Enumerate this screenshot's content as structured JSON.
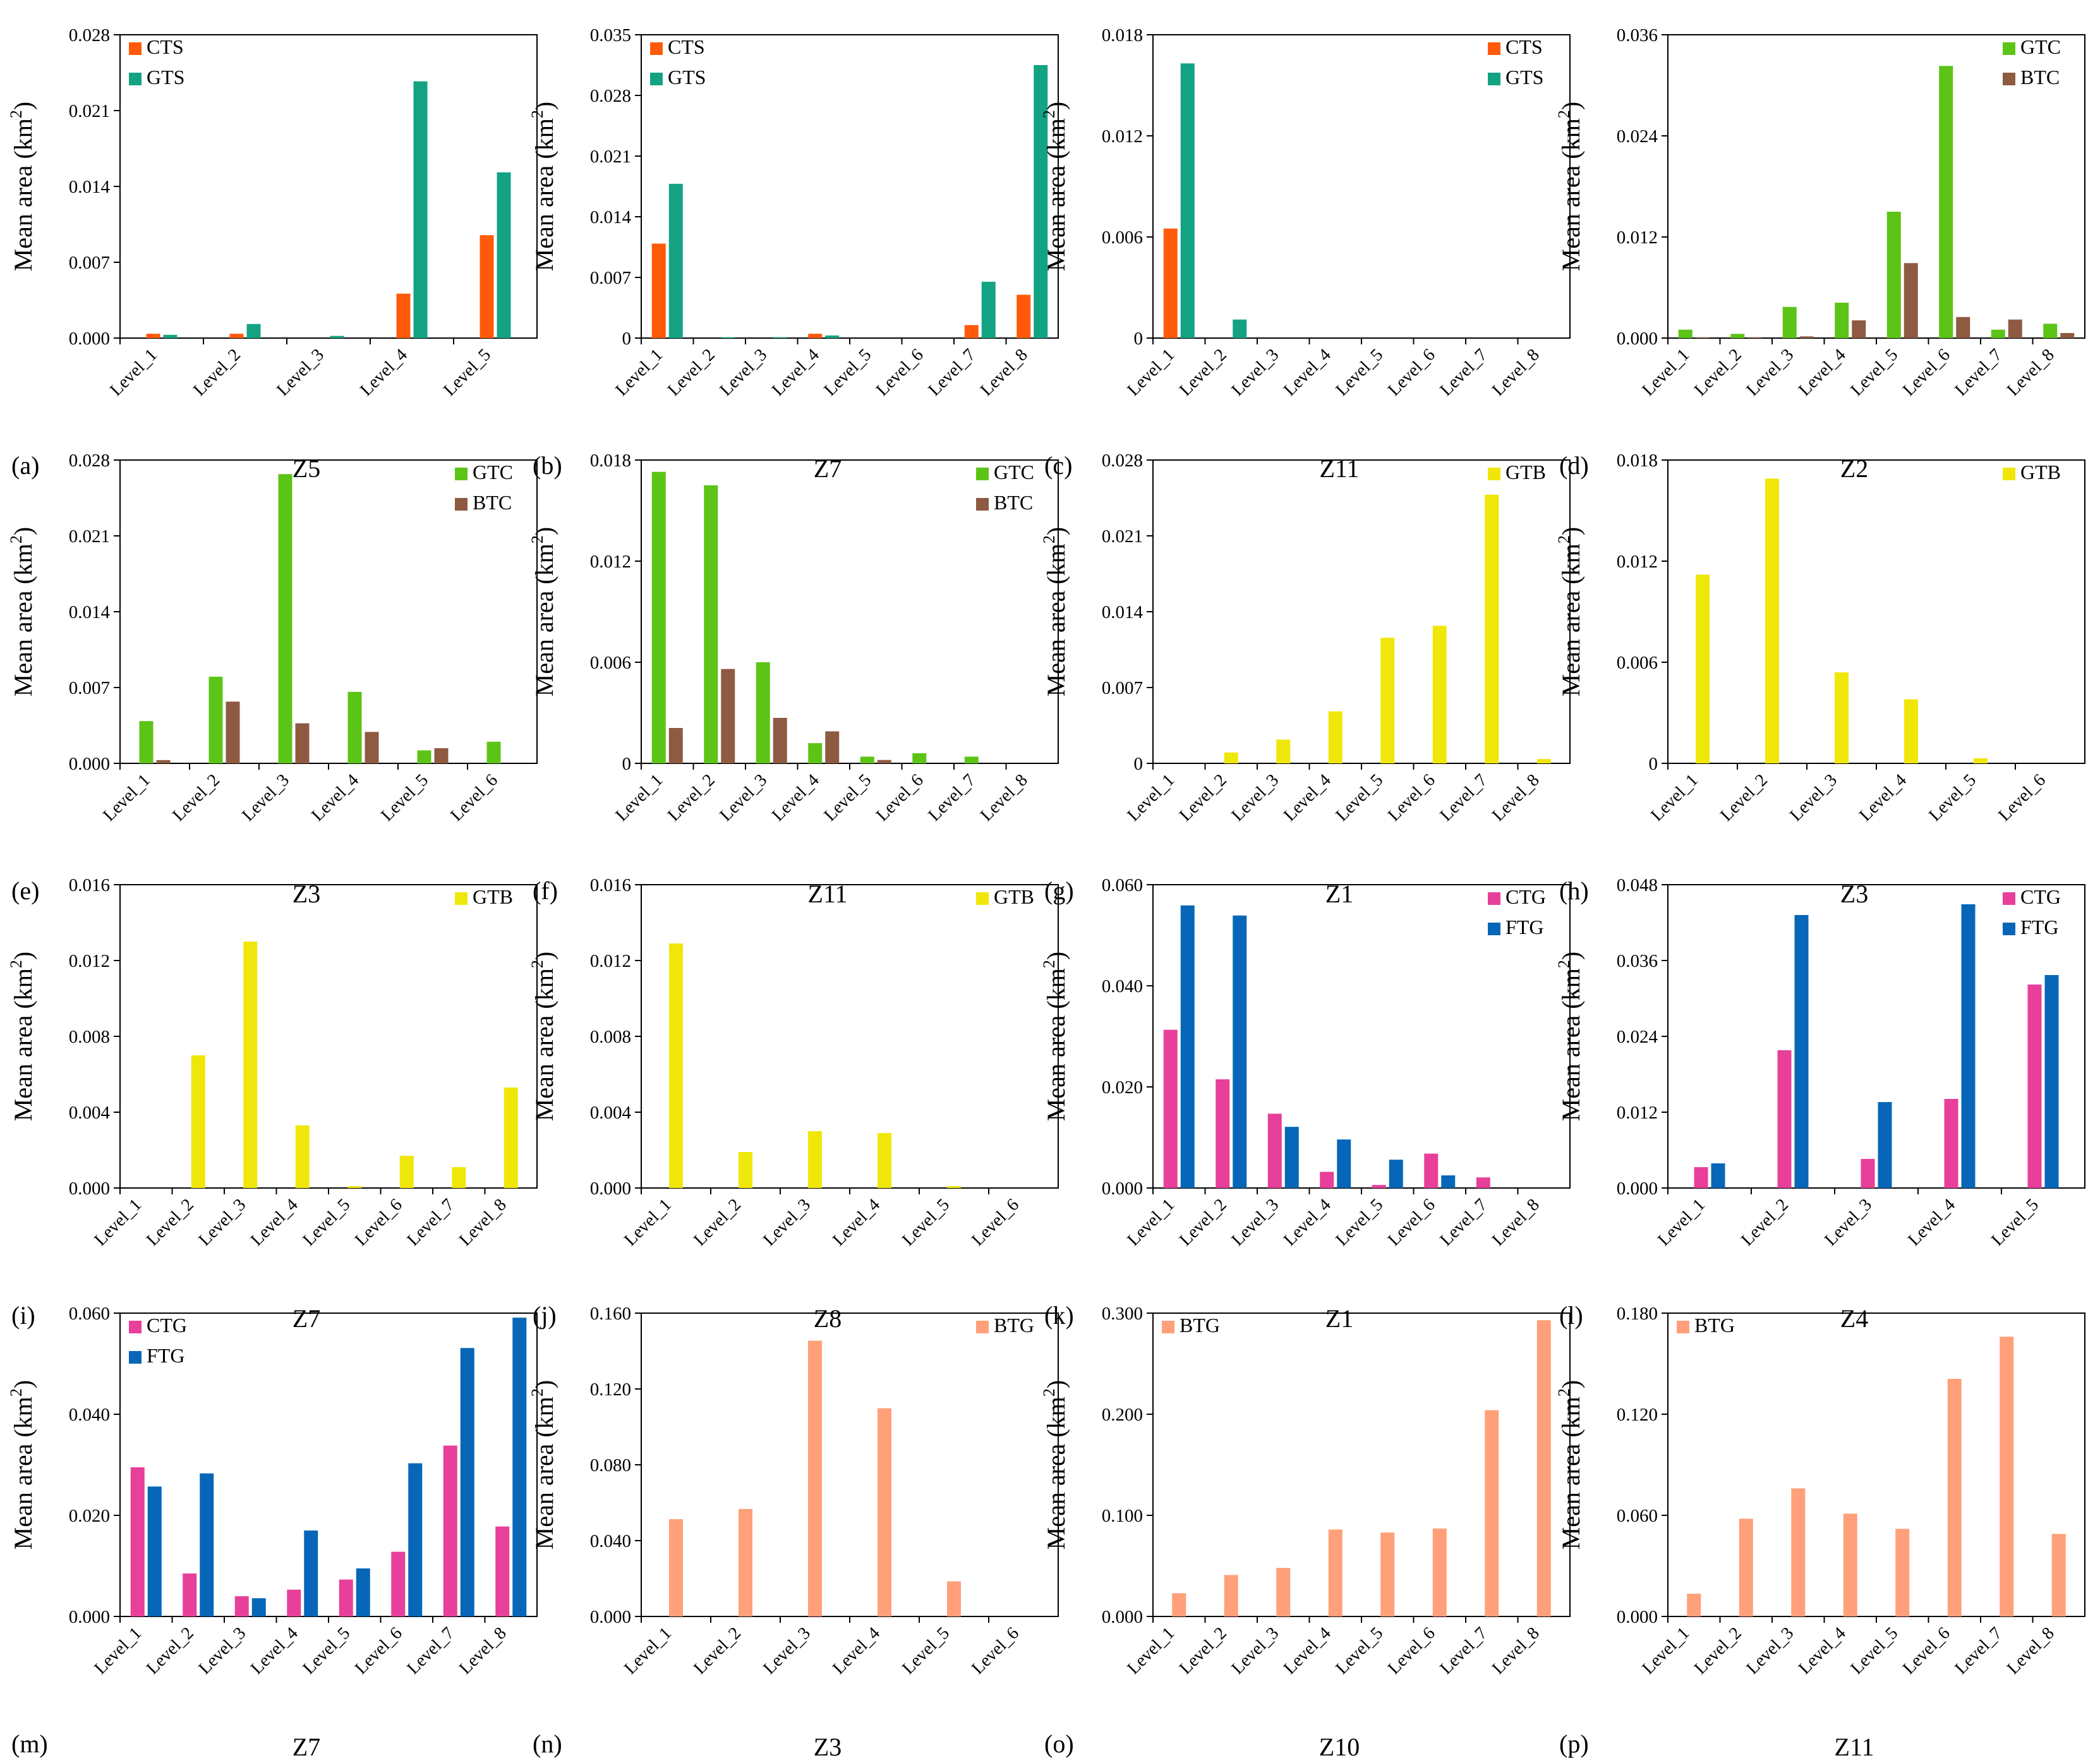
{
  "chart_data": [
    {
      "panel_label": "(a)",
      "zone": "Z5",
      "type": "bar",
      "ylabel": "Mean area (km²)",
      "ylim": [
        0,
        0.028
      ],
      "yticks": [
        "0.000",
        "0.007",
        "0.014",
        "0.021",
        "0.028"
      ],
      "categories": [
        "Level_1",
        "Level_2",
        "Level_3",
        "Level_4",
        "Level_5"
      ],
      "series": [
        {
          "name": "CTS",
          "color": "#FF5A0A",
          "values": [
            0.0004,
            0.0004,
            0.0,
            0.0041,
            0.0095
          ]
        },
        {
          "name": "GTS",
          "color": "#13A383",
          "values": [
            0.0003,
            0.0013,
            0.0002,
            0.0237,
            0.0153
          ]
        }
      ],
      "legend": "top-left"
    },
    {
      "panel_label": "(b)",
      "zone": "Z7",
      "type": "bar",
      "ylabel": "Mean area (km²)",
      "ylim": [
        0,
        0.035
      ],
      "yticks": [
        "0",
        "0.007",
        "0.014",
        "0.021",
        "0.028",
        "0.035"
      ],
      "categories": [
        "Level_1",
        "Level_2",
        "Level_3",
        "Level_4",
        "Level_5",
        "Level_6",
        "Level_7",
        "Level_8"
      ],
      "series": [
        {
          "name": "CTS",
          "color": "#FF5A0A",
          "values": [
            0.0109,
            0.0,
            0.0,
            0.0005,
            0.0,
            0.0,
            0.0015,
            0.005
          ]
        },
        {
          "name": "GTS",
          "color": "#13A383",
          "values": [
            0.0178,
            0.0001,
            0.0001,
            0.0003,
            0.0,
            0.0,
            0.0065,
            0.0315
          ]
        }
      ],
      "legend": "top-left"
    },
    {
      "panel_label": "(c)",
      "zone": "Z11",
      "type": "bar",
      "ylabel": "Mean area (km²)",
      "ylim": [
        0,
        0.018
      ],
      "yticks": [
        "0",
        "0.006",
        "0.012",
        "0.018"
      ],
      "categories": [
        "Level_1",
        "Level_2",
        "Level_3",
        "Level_4",
        "Level_5",
        "Level_6",
        "Level_7",
        "Level_8"
      ],
      "series": [
        {
          "name": "CTS",
          "color": "#FF5A0A",
          "values": [
            0.0065,
            0.0,
            0.0,
            0.0,
            0.0,
            0.0,
            0.0,
            0.0
          ]
        },
        {
          "name": "GTS",
          "color": "#13A383",
          "values": [
            0.0163,
            0.0011,
            0.0,
            0.0,
            0.0,
            0.0,
            0.0,
            0.0
          ]
        }
      ],
      "legend": "top-right"
    },
    {
      "panel_label": "(d)",
      "zone": "Z2",
      "type": "bar",
      "ylabel": "Mean area (km²)",
      "ylim": [
        0,
        0.036
      ],
      "yticks": [
        "0.000",
        "0.012",
        "0.024",
        "0.036"
      ],
      "categories": [
        "Level_1",
        "Level_2",
        "Level_3",
        "Level_4",
        "Level_5",
        "Level_6",
        "Level_7",
        "Level_8"
      ],
      "series": [
        {
          "name": "GTC",
          "color": "#5CC416",
          "values": [
            0.001,
            0.0005,
            0.0037,
            0.0042,
            0.015,
            0.0323,
            0.001,
            0.0017
          ]
        },
        {
          "name": "BTC",
          "color": "#8E5A42",
          "values": [
            0.0001,
            0.0001,
            0.0002,
            0.0021,
            0.0089,
            0.0025,
            0.0022,
            0.0006
          ]
        }
      ],
      "legend": "top-right"
    },
    {
      "panel_label": "(e)",
      "zone": "Z3",
      "type": "bar",
      "ylabel": "Mean area (km²)",
      "ylim": [
        0,
        0.028
      ],
      "yticks": [
        "0.000",
        "0.007",
        "0.014",
        "0.021",
        "0.028"
      ],
      "categories": [
        "Level_1",
        "Level_2",
        "Level_3",
        "Level_4",
        "Level_5",
        "Level_6"
      ],
      "series": [
        {
          "name": "GTC",
          "color": "#5CC416",
          "values": [
            0.0039,
            0.008,
            0.0267,
            0.0066,
            0.0012,
            0.002
          ]
        },
        {
          "name": "BTC",
          "color": "#8E5A42",
          "values": [
            0.0003,
            0.0057,
            0.0037,
            0.0029,
            0.0014,
            0.0
          ]
        }
      ],
      "legend": "top-right"
    },
    {
      "panel_label": "(f)",
      "zone": "Z11",
      "type": "bar",
      "ylabel": "Mean area (km²)",
      "ylim": [
        0,
        0.018
      ],
      "yticks": [
        "0",
        "0.006",
        "0.012",
        "0.018"
      ],
      "categories": [
        "Level_1",
        "Level_2",
        "Level_3",
        "Level_4",
        "Level_5",
        "Level_6",
        "Level_7",
        "Level_8"
      ],
      "series": [
        {
          "name": "GTC",
          "color": "#5CC416",
          "values": [
            0.0173,
            0.0165,
            0.006,
            0.0012,
            0.0004,
            0.0006,
            0.0004,
            0.0
          ]
        },
        {
          "name": "BTC",
          "color": "#8E5A42",
          "values": [
            0.0021,
            0.0056,
            0.0027,
            0.0019,
            0.0002,
            0.0,
            0.0,
            0.0
          ]
        }
      ],
      "legend": "top-right"
    },
    {
      "panel_label": "(g)",
      "zone": "Z1",
      "type": "bar",
      "ylabel": "Mean area (km²)",
      "ylim": [
        0,
        0.028
      ],
      "yticks": [
        "0",
        "0.007",
        "0.014",
        "0.021",
        "0.028"
      ],
      "categories": [
        "Level_1",
        "Level_2",
        "Level_3",
        "Level_4",
        "Level_5",
        "Level_6",
        "Level_7",
        "Level_8"
      ],
      "series": [
        {
          "name": "GTB",
          "color": "#EFE70A",
          "values": [
            0.0,
            0.001,
            0.0022,
            0.0048,
            0.0116,
            0.0127,
            0.0248,
            0.0004
          ]
        }
      ],
      "legend": "top-right"
    },
    {
      "panel_label": "(h)",
      "zone": "Z3",
      "type": "bar",
      "ylabel": "Mean area (km²)",
      "ylim": [
        0,
        0.018
      ],
      "yticks": [
        "0",
        "0.006",
        "0.012",
        "0.018"
      ],
      "categories": [
        "Level_1",
        "Level_2",
        "Level_3",
        "Level_4",
        "Level_5",
        "Level_6"
      ],
      "series": [
        {
          "name": "GTB",
          "color": "#EFE70A",
          "values": [
            0.0112,
            0.0169,
            0.0054,
            0.0038,
            0.0003,
            0.0
          ]
        }
      ],
      "legend": "top-right"
    },
    {
      "panel_label": "(i)",
      "zone": "Z7",
      "type": "bar",
      "ylabel": "Mean area (km²)",
      "ylim": [
        0,
        0.016
      ],
      "yticks": [
        "0.000",
        "0.004",
        "0.008",
        "0.012",
        "0.016"
      ],
      "categories": [
        "Level_1",
        "Level_2",
        "Level_3",
        "Level_4",
        "Level_5",
        "Level_6",
        "Level_7",
        "Level_8"
      ],
      "series": [
        {
          "name": "GTB",
          "color": "#EFE70A",
          "values": [
            0.0,
            0.007,
            0.013,
            0.0033,
            0.0001,
            0.0017,
            0.0011,
            0.0053
          ]
        }
      ],
      "legend": "top-right"
    },
    {
      "panel_label": "(j)",
      "zone": "Z8",
      "type": "bar",
      "ylabel": "Mean area (km²)",
      "ylim": [
        0,
        0.016
      ],
      "yticks": [
        "0.000",
        "0.004",
        "0.008",
        "0.012",
        "0.016"
      ],
      "categories": [
        "Level_1",
        "Level_2",
        "Level_3",
        "Level_4",
        "Level_5",
        "Level_6"
      ],
      "series": [
        {
          "name": "GTB",
          "color": "#EFE70A",
          "values": [
            0.0129,
            0.0019,
            0.003,
            0.0029,
            0.0001,
            0.0
          ]
        }
      ],
      "legend": "top-right"
    },
    {
      "panel_label": "(k)",
      "zone": "Z1",
      "type": "bar",
      "ylabel": "Mean area (km²)",
      "ylim": [
        0,
        0.06
      ],
      "yticks": [
        "0.000",
        "0.020",
        "0.040",
        "0.060"
      ],
      "categories": [
        "Level_1",
        "Level_2",
        "Level_3",
        "Level_4",
        "Level_5",
        "Level_6",
        "Level_7",
        "Level_8"
      ],
      "series": [
        {
          "name": "CTG",
          "color": "#E83F9A",
          "values": [
            0.0313,
            0.0215,
            0.0147,
            0.0032,
            0.0006,
            0.0068,
            0.0021,
            0.0
          ]
        },
        {
          "name": "FTG",
          "color": "#0766B8",
          "values": [
            0.0559,
            0.0539,
            0.0121,
            0.0096,
            0.0056,
            0.0025,
            0.0,
            0.0
          ]
        }
      ],
      "legend": "top-right"
    },
    {
      "panel_label": "(l)",
      "zone": "Z4",
      "type": "bar",
      "ylabel": "Mean area (km²)",
      "ylim": [
        0,
        0.048
      ],
      "yticks": [
        "0.000",
        "0.012",
        "0.024",
        "0.036",
        "0.048"
      ],
      "categories": [
        "Level_1",
        "Level_2",
        "Level_3",
        "Level_4",
        "Level_5"
      ],
      "series": [
        {
          "name": "CTG",
          "color": "#E83F9A",
          "values": [
            0.0033,
            0.0218,
            0.0046,
            0.0141,
            0.0322
          ]
        },
        {
          "name": "FTG",
          "color": "#0766B8",
          "values": [
            0.0039,
            0.0432,
            0.0136,
            0.0449,
            0.0337
          ]
        }
      ],
      "legend": "top-right"
    },
    {
      "panel_label": "(m)",
      "zone": "Z7",
      "type": "bar",
      "ylabel": "Mean area (km²)",
      "ylim": [
        0,
        0.06
      ],
      "yticks": [
        "0.000",
        "0.020",
        "0.040",
        "0.060"
      ],
      "categories": [
        "Level_1",
        "Level_2",
        "Level_3",
        "Level_4",
        "Level_5",
        "Level_6",
        "Level_7",
        "Level_8"
      ],
      "series": [
        {
          "name": "CTG",
          "color": "#E83F9A",
          "values": [
            0.0295,
            0.0085,
            0.004,
            0.0053,
            0.0073,
            0.0128,
            0.0338,
            0.0178
          ]
        },
        {
          "name": "FTG",
          "color": "#0766B8",
          "values": [
            0.0257,
            0.0283,
            0.0036,
            0.017,
            0.0095,
            0.0303,
            0.0531,
            0.0591
          ]
        }
      ],
      "legend": "top-left"
    },
    {
      "panel_label": "(n)",
      "zone": "Z3",
      "type": "bar",
      "ylabel": "Mean area (km²)",
      "ylim": [
        0,
        0.16
      ],
      "yticks": [
        "0.000",
        "0.040",
        "0.080",
        "0.120",
        "0.160"
      ],
      "categories": [
        "Level_1",
        "Level_2",
        "Level_3",
        "Level_4",
        "Level_5",
        "Level_6"
      ],
      "series": [
        {
          "name": "BTG",
          "color": "#FFA07A",
          "values": [
            0.0513,
            0.0567,
            0.1455,
            0.1098,
            0.0185,
            0.0
          ]
        }
      ],
      "legend": "top-right"
    },
    {
      "panel_label": "(o)",
      "zone": "Z10",
      "type": "bar",
      "ylabel": "Mean area (km²)",
      "ylim": [
        0,
        0.3
      ],
      "yticks": [
        "0.000",
        "0.100",
        "0.200",
        "0.300"
      ],
      "categories": [
        "Level_1",
        "Level_2",
        "Level_3",
        "Level_4",
        "Level_5",
        "Level_6",
        "Level_7",
        "Level_8"
      ],
      "series": [
        {
          "name": "BTG",
          "color": "#FFA07A",
          "values": [
            0.023,
            0.041,
            0.048,
            0.086,
            0.083,
            0.087,
            0.204,
            0.293
          ]
        }
      ],
      "legend": "top-left"
    },
    {
      "panel_label": "(p)",
      "zone": "Z11",
      "type": "bar",
      "ylabel": "Mean area (km²)",
      "ylim": [
        0,
        0.18
      ],
      "yticks": [
        "0.000",
        "0.060",
        "0.120",
        "0.180"
      ],
      "categories": [
        "Level_1",
        "Level_2",
        "Level_3",
        "Level_4",
        "Level_5",
        "Level_6",
        "Level_7",
        "Level_8"
      ],
      "series": [
        {
          "name": "BTG",
          "color": "#FFA07A",
          "values": [
            0.0135,
            0.058,
            0.076,
            0.061,
            0.052,
            0.141,
            0.166,
            0.049
          ]
        }
      ],
      "legend": "top-left"
    }
  ]
}
